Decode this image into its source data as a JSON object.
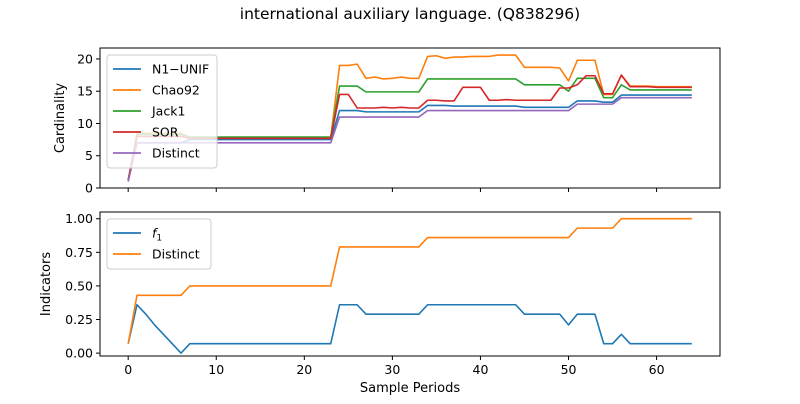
{
  "figure": {
    "title": "international auxiliary language. (Q838296)"
  },
  "chart_data": [
    {
      "type": "line",
      "ylabel": "Cardinality",
      "xlabel": "",
      "xlim": [
        -3.2,
        67.2
      ],
      "ylim": [
        0,
        21.7
      ],
      "xticks": [
        0,
        10,
        20,
        30,
        40,
        50,
        60
      ],
      "yticks": [
        0,
        5,
        10,
        15,
        20
      ],
      "show_xtick_labels": false,
      "legend": "upper-left",
      "grid": false,
      "x": [
        0,
        1,
        2,
        3,
        4,
        5,
        6,
        7,
        8,
        9,
        10,
        11,
        12,
        13,
        14,
        15,
        16,
        17,
        18,
        19,
        20,
        21,
        22,
        23,
        24,
        25,
        26,
        27,
        28,
        29,
        30,
        31,
        32,
        33,
        34,
        35,
        36,
        37,
        38,
        39,
        40,
        41,
        42,
        43,
        44,
        45,
        46,
        47,
        48,
        49,
        50,
        51,
        52,
        53,
        54,
        55,
        56,
        57,
        58,
        59,
        60,
        61,
        62,
        63,
        64
      ],
      "series": [
        {
          "name": "N1−UNIF",
          "color": "#1f77b4",
          "values": [
            1.2,
            7,
            7,
            7,
            7,
            7,
            7,
            7.5,
            7.5,
            7.5,
            7.5,
            7.5,
            7.5,
            7.5,
            7.5,
            7.5,
            7.5,
            7.5,
            7.5,
            7.5,
            7.5,
            7.5,
            7.5,
            7.5,
            12,
            12,
            12,
            11.8,
            11.8,
            11.8,
            11.8,
            11.8,
            11.8,
            11.8,
            12.8,
            12.8,
            12.8,
            12.7,
            12.7,
            12.7,
            12.7,
            12.7,
            12.7,
            12.7,
            12.7,
            12.5,
            12.5,
            12.5,
            12.5,
            12.5,
            12.5,
            13.5,
            13.5,
            13.5,
            13.3,
            13.3,
            14.4,
            14.4,
            14.4,
            14.4,
            14.4,
            14.4,
            14.4,
            14.4,
            14.4
          ]
        },
        {
          "name": "Chao92",
          "color": "#ff7f0e",
          "values": [
            1.2,
            8.5,
            8.5,
            8.5,
            8.5,
            8.5,
            8.5,
            7.8,
            7.8,
            7.8,
            7.8,
            7.8,
            7.8,
            7.8,
            7.8,
            7.8,
            7.8,
            7.8,
            7.8,
            7.8,
            7.8,
            7.8,
            7.8,
            7.8,
            19,
            19,
            19.2,
            17,
            17.2,
            16.9,
            17,
            17.2,
            17,
            17,
            20.4,
            20.5,
            20.1,
            20.3,
            20.3,
            20.4,
            20.4,
            20.4,
            20.6,
            20.6,
            20.6,
            18.7,
            18.7,
            18.7,
            18.7,
            18.6,
            16.6,
            19.8,
            19.8,
            19.8,
            14.5,
            14.5,
            17.5,
            15.8,
            15.8,
            15.8,
            15.7,
            15.7,
            15.7,
            15.7,
            15.7
          ]
        },
        {
          "name": "Jack1",
          "color": "#2ca02c",
          "values": [
            1.2,
            8.3,
            8.3,
            8.3,
            8.3,
            8.3,
            8.3,
            7.9,
            7.9,
            7.9,
            7.9,
            7.9,
            7.9,
            7.9,
            7.9,
            7.9,
            7.9,
            7.9,
            7.9,
            7.9,
            7.9,
            7.9,
            7.9,
            7.9,
            15.8,
            15.8,
            15.8,
            14.9,
            14.9,
            14.9,
            14.9,
            14.9,
            14.9,
            14.9,
            16.9,
            16.9,
            16.9,
            16.9,
            16.9,
            16.9,
            16.9,
            16.9,
            16.9,
            16.9,
            16.9,
            16,
            16,
            16,
            16,
            16,
            15,
            17,
            17,
            17,
            14,
            14,
            16,
            15.2,
            15.2,
            15.2,
            15.2,
            15.2,
            15.2,
            15.2,
            15.2
          ]
        },
        {
          "name": "SOR",
          "color": "#d62728",
          "values": [
            1.2,
            8,
            8,
            8,
            8,
            8,
            8,
            7.7,
            7.7,
            7.7,
            7.7,
            7.7,
            7.7,
            7.7,
            7.7,
            7.7,
            7.7,
            7.7,
            7.7,
            7.7,
            7.7,
            7.7,
            7.7,
            7.7,
            14.5,
            14.5,
            12.4,
            12.4,
            12.4,
            12.5,
            12.4,
            12.5,
            12.4,
            12.4,
            13.6,
            13.6,
            13.5,
            13.5,
            15.6,
            15.6,
            15.6,
            13.6,
            13.6,
            13.7,
            13.6,
            13.6,
            13.6,
            13.6,
            13.6,
            15.5,
            15.5,
            16,
            17.4,
            17.4,
            14.6,
            14.6,
            17.5,
            15.7,
            15.7,
            15.7,
            15.6,
            15.6,
            15.6,
            15.6,
            15.6
          ]
        },
        {
          "name": "Distinct",
          "color": "#9467bd",
          "values": [
            1,
            7,
            7,
            7,
            7,
            7,
            7,
            7,
            7,
            7,
            7,
            7,
            7,
            7,
            7,
            7,
            7,
            7,
            7,
            7,
            7,
            7,
            7,
            7,
            11,
            11,
            11,
            11,
            11,
            11,
            11,
            11,
            11,
            11,
            12,
            12,
            12,
            12,
            12,
            12,
            12,
            12,
            12,
            12,
            12,
            12,
            12,
            12,
            12,
            12,
            12,
            13,
            13,
            13,
            13,
            13,
            14,
            14,
            14,
            14,
            14,
            14,
            14,
            14,
            14
          ]
        }
      ]
    },
    {
      "type": "line",
      "ylabel": "Indicators",
      "xlabel": "Sample Periods",
      "xlim": [
        -3.2,
        67.2
      ],
      "ylim": [
        -0.0214,
        1.05
      ],
      "xticks": [
        0,
        10,
        20,
        30,
        40,
        50,
        60
      ],
      "yticks": [
        0,
        0.25,
        0.5,
        0.75,
        1.0
      ],
      "ytick_labels": [
        "0.00",
        "0.25",
        "0.50",
        "0.75",
        "1.00"
      ],
      "show_xtick_labels": true,
      "legend": "upper-left",
      "grid": false,
      "x": [
        0,
        1,
        2,
        3,
        4,
        5,
        6,
        7,
        8,
        9,
        10,
        11,
        12,
        13,
        14,
        15,
        16,
        17,
        18,
        19,
        20,
        21,
        22,
        23,
        24,
        25,
        26,
        27,
        28,
        29,
        30,
        31,
        32,
        33,
        34,
        35,
        36,
        37,
        38,
        39,
        40,
        41,
        42,
        43,
        44,
        45,
        46,
        47,
        48,
        49,
        50,
        51,
        52,
        53,
        54,
        55,
        56,
        57,
        58,
        59,
        60,
        61,
        62,
        63,
        64
      ],
      "series": [
        {
          "name": "f1",
          "name_base": "f",
          "name_sub": "1",
          "color": "#1f77b4",
          "values": [
            0.07,
            0.36,
            0.29,
            0.21,
            0.14,
            0.07,
            0,
            0.07,
            0.07,
            0.07,
            0.07,
            0.07,
            0.07,
            0.07,
            0.07,
            0.07,
            0.07,
            0.07,
            0.07,
            0.07,
            0.07,
            0.07,
            0.07,
            0.07,
            0.36,
            0.36,
            0.36,
            0.29,
            0.29,
            0.29,
            0.29,
            0.29,
            0.29,
            0.29,
            0.36,
            0.36,
            0.36,
            0.36,
            0.36,
            0.36,
            0.36,
            0.36,
            0.36,
            0.36,
            0.36,
            0.29,
            0.29,
            0.29,
            0.29,
            0.29,
            0.21,
            0.29,
            0.29,
            0.29,
            0.07,
            0.07,
            0.14,
            0.07,
            0.07,
            0.07,
            0.07,
            0.07,
            0.07,
            0.07,
            0.07
          ]
        },
        {
          "name": "Distinct",
          "color": "#ff7f0e",
          "values": [
            0.07,
            0.43,
            0.43,
            0.43,
            0.43,
            0.43,
            0.43,
            0.5,
            0.5,
            0.5,
            0.5,
            0.5,
            0.5,
            0.5,
            0.5,
            0.5,
            0.5,
            0.5,
            0.5,
            0.5,
            0.5,
            0.5,
            0.5,
            0.5,
            0.79,
            0.79,
            0.79,
            0.79,
            0.79,
            0.79,
            0.79,
            0.79,
            0.79,
            0.79,
            0.86,
            0.86,
            0.86,
            0.86,
            0.86,
            0.86,
            0.86,
            0.86,
            0.86,
            0.86,
            0.86,
            0.86,
            0.86,
            0.86,
            0.86,
            0.86,
            0.86,
            0.93,
            0.93,
            0.93,
            0.93,
            0.93,
            1,
            1,
            1,
            1,
            1,
            1,
            1,
            1,
            1
          ]
        }
      ]
    }
  ]
}
